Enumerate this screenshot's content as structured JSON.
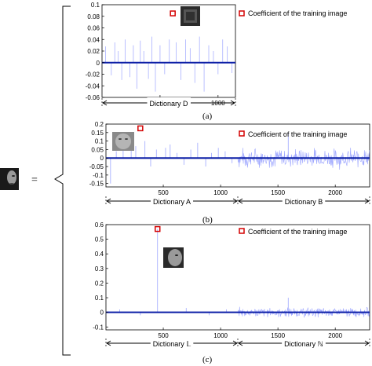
{
  "equals_sign": "=",
  "chart_data": [
    {
      "type": "bar",
      "panel_label": "(a)",
      "legend": "Coefficient of the training image",
      "legend_placement": "top-right",
      "marker_label": "",
      "xlim": [
        0,
        1150
      ],
      "ylim": [
        -0.06,
        0.1
      ],
      "xticks": [
        500,
        1000
      ],
      "yticks": [
        0.1,
        0.08,
        0.06,
        0.04,
        0.02,
        0,
        -0.02,
        -0.04,
        -0.06
      ],
      "ytick_labels": [
        "0.1",
        "0.08",
        "0.06",
        "0.04",
        "0.02",
        "0",
        "-0.02",
        "-0.04",
        "-0.06"
      ],
      "training_coefficient": {
        "x": 610,
        "y": 0.085
      },
      "dictionaries": [
        {
          "name": "Dictionary D",
          "range": [
            0,
            1150
          ]
        }
      ],
      "series": [
        {
          "color": "#aab1ff",
          "x": [
            30,
            80,
            110,
            140,
            170,
            200,
            240,
            270,
            300,
            330,
            360,
            400,
            430,
            460,
            500,
            540,
            580,
            640,
            680,
            720,
            760,
            800,
            840,
            880,
            920,
            960,
            1000,
            1040,
            1080,
            1120
          ],
          "values": [
            0.028,
            -0.022,
            0.035,
            0.02,
            -0.03,
            0.04,
            -0.025,
            0.03,
            -0.045,
            0.038,
            0.02,
            -0.028,
            0.045,
            -0.05,
            0.03,
            -0.02,
            0.04,
            0.035,
            -0.03,
            0.04,
            0.025,
            -0.035,
            0.045,
            -0.05,
            0.03,
            0.02,
            -0.02,
            0.04,
            0.028,
            -0.018
          ]
        }
      ]
    },
    {
      "type": "bar",
      "panel_label": "(b)",
      "legend": "Coefficient of the training image",
      "legend_placement": "top-right",
      "marker_label": "",
      "xlim": [
        0,
        2300
      ],
      "ylim": [
        -0.17,
        0.2
      ],
      "xticks": [
        500,
        1000,
        1500,
        2000
      ],
      "yticks": [
        0.2,
        0.15,
        0.1,
        0.05,
        0,
        -0.05,
        -0.1,
        -0.15
      ],
      "ytick_labels": [
        "0.2",
        "0.15",
        "0.1",
        "0.05",
        "0",
        "-0.05",
        "-0.1",
        "-0.15"
      ],
      "training_coefficient": {
        "x": 300,
        "y": 0.175
      },
      "dictionaries": [
        {
          "name": "Dictionary A",
          "range": [
            0,
            1150
          ]
        },
        {
          "name": "Dictionary B",
          "range": [
            1150,
            2300
          ]
        }
      ],
      "series": [
        {
          "color": "#9da6ff",
          "x": [
            40,
            90,
            150,
            220,
            260,
            340,
            390,
            440,
            520,
            560,
            620,
            680,
            740,
            800,
            870,
            920,
            980,
            1040,
            1100
          ],
          "values": [
            -0.15,
            0.04,
            0.06,
            0.05,
            0.07,
            0.1,
            -0.05,
            0.05,
            0.06,
            0.08,
            0.03,
            -0.04,
            0.05,
            0.09,
            -0.05,
            0.03,
            0.06,
            0.04,
            -0.03
          ],
          "dense_region": {
            "range": [
              1150,
              2300
            ],
            "amplitude": 0.07,
            "spike": {
              "x": 1590,
              "y": 0.15
            }
          }
        }
      ]
    },
    {
      "type": "bar",
      "panel_label": "(c)",
      "legend": "Coefficient of the training image",
      "legend_placement": "top-right",
      "marker_label": "",
      "xlim": [
        0,
        2300
      ],
      "ylim": [
        -0.12,
        0.6
      ],
      "xticks": [
        500,
        1000,
        1500,
        2000
      ],
      "yticks": [
        0.6,
        0.5,
        0.4,
        0.3,
        0.2,
        0.1,
        0,
        -0.1
      ],
      "ytick_labels": [
        "0.6",
        "0.5",
        "0.4",
        "0.3",
        "0.2",
        "0.1",
        "0",
        "-0.1"
      ],
      "training_coefficient": {
        "x": 450,
        "y": 0.57
      },
      "dictionaries": [
        {
          "name": "Dictionary 𝕃",
          "range": [
            0,
            1150
          ]
        },
        {
          "name": "Dictionary ℕ",
          "range": [
            1150,
            2300
          ]
        }
      ],
      "series": [
        {
          "color": "#9da6ff",
          "x": [
            450,
            120,
            300,
            700,
            900,
            1050
          ],
          "values": [
            0.57,
            0.02,
            -0.02,
            0.03,
            -0.02,
            0.02
          ],
          "dense_region": {
            "range": [
              1150,
              2300
            ],
            "amplitude": 0.04,
            "spike": {
              "x": 1590,
              "y": 0.1
            }
          }
        }
      ]
    }
  ]
}
